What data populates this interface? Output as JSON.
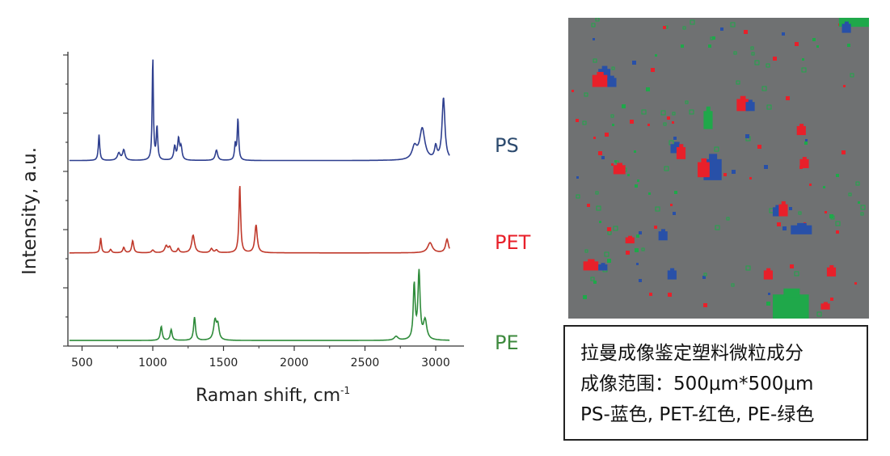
{
  "chart_data": [
    {
      "type": "line",
      "xlabel": "Raman shift, cm",
      "xlabel_superscript": "-1",
      "ylabel": "Intensity,  a.u.",
      "xlim": [
        400,
        3200
      ],
      "xticks": [
        "500",
        "1000",
        "1500",
        "2000",
        "2500",
        "3000"
      ],
      "xtick_values": [
        500,
        1000,
        1500,
        2000,
        2500,
        3000
      ],
      "grid": false,
      "series": [
        {
          "name": "PS",
          "color": "#2e3f8f",
          "label_color": "#2c4a6e",
          "baseline": 0.05,
          "peaks": [
            [
              620,
              0.25,
              6
            ],
            [
              760,
              0.07,
              12
            ],
            [
              795,
              0.1,
              10
            ],
            [
              1000,
              1.0,
              5
            ],
            [
              1030,
              0.32,
              6
            ],
            [
              1155,
              0.13,
              8
            ],
            [
              1182,
              0.2,
              8
            ],
            [
              1200,
              0.12,
              8
            ],
            [
              1450,
              0.1,
              10
            ],
            [
              1583,
              0.15,
              6
            ],
            [
              1602,
              0.4,
              6
            ],
            [
              2850,
              0.12,
              20
            ],
            [
              2905,
              0.3,
              22
            ],
            [
              3000,
              0.12,
              10
            ],
            [
              3055,
              0.6,
              12
            ]
          ]
        },
        {
          "name": "PET",
          "color": "#c0392b",
          "label_color": "#e8202a",
          "baseline": 0.05,
          "peaks": [
            [
              632,
              0.22,
              6
            ],
            [
              702,
              0.05,
              8
            ],
            [
              795,
              0.08,
              8
            ],
            [
              858,
              0.18,
              8
            ],
            [
              1000,
              0.04,
              10
            ],
            [
              1095,
              0.1,
              12
            ],
            [
              1120,
              0.08,
              10
            ],
            [
              1180,
              0.06,
              8
            ],
            [
              1285,
              0.26,
              12
            ],
            [
              1415,
              0.06,
              10
            ],
            [
              1450,
              0.04,
              10
            ],
            [
              1615,
              1.0,
              7
            ],
            [
              1730,
              0.41,
              10
            ],
            [
              2960,
              0.15,
              20
            ],
            [
              3080,
              0.2,
              12
            ]
          ]
        },
        {
          "name": "PE",
          "color": "#2e8b3a",
          "label_color": "#3e8a3e",
          "baseline": 0.04,
          "peaks": [
            [
              1060,
              0.18,
              8
            ],
            [
              1130,
              0.14,
              8
            ],
            [
              1295,
              0.3,
              8
            ],
            [
              1440,
              0.25,
              12
            ],
            [
              1460,
              0.18,
              10
            ],
            [
              2720,
              0.05,
              16
            ],
            [
              2848,
              0.7,
              8
            ],
            [
              2882,
              0.86,
              9
            ],
            [
              2925,
              0.25,
              14
            ]
          ]
        }
      ]
    },
    {
      "type": "heatmap",
      "description_lines": [
        "拉曼成像鉴定塑料微粒成分",
        "成像范围：500μm*500μm",
        "PS-蓝色, PET-红色, PE-绿色"
      ],
      "colors": {
        "background": "#6f7172",
        "PS": "#2850a8",
        "PET": "#e8202a",
        "PE": "#1fa84a"
      },
      "particles": [
        {
          "cls": "PS",
          "x": 0.1,
          "y": 0.17,
          "w": 0.04,
          "h": 0.04
        },
        {
          "cls": "PET",
          "x": 0.08,
          "y": 0.19,
          "w": 0.05,
          "h": 0.04
        },
        {
          "cls": "PS",
          "x": 0.13,
          "y": 0.2,
          "w": 0.03,
          "h": 0.03
        },
        {
          "cls": "PE",
          "x": 0.9,
          "y": 0.0,
          "w": 0.1,
          "h": 0.03
        },
        {
          "cls": "PS",
          "x": 0.91,
          "y": 0.02,
          "w": 0.03,
          "h": 0.03
        },
        {
          "cls": "PET",
          "x": 0.56,
          "y": 0.27,
          "w": 0.04,
          "h": 0.04
        },
        {
          "cls": "PS",
          "x": 0.59,
          "y": 0.28,
          "w": 0.03,
          "h": 0.03
        },
        {
          "cls": "PE",
          "x": 0.45,
          "y": 0.31,
          "w": 0.03,
          "h": 0.06
        },
        {
          "cls": "PS",
          "x": 0.34,
          "y": 0.42,
          "w": 0.04,
          "h": 0.03
        },
        {
          "cls": "PET",
          "x": 0.36,
          "y": 0.43,
          "w": 0.03,
          "h": 0.04
        },
        {
          "cls": "PS",
          "x": 0.45,
          "y": 0.47,
          "w": 0.06,
          "h": 0.07
        },
        {
          "cls": "PET",
          "x": 0.43,
          "y": 0.48,
          "w": 0.04,
          "h": 0.05
        },
        {
          "cls": "PET",
          "x": 0.15,
          "y": 0.49,
          "w": 0.04,
          "h": 0.03
        },
        {
          "cls": "PET",
          "x": 0.76,
          "y": 0.36,
          "w": 0.03,
          "h": 0.03
        },
        {
          "cls": "PET",
          "x": 0.77,
          "y": 0.47,
          "w": 0.03,
          "h": 0.03
        },
        {
          "cls": "PS",
          "x": 0.68,
          "y": 0.63,
          "w": 0.03,
          "h": 0.03
        },
        {
          "cls": "PET",
          "x": 0.7,
          "y": 0.62,
          "w": 0.03,
          "h": 0.04
        },
        {
          "cls": "PS",
          "x": 0.74,
          "y": 0.69,
          "w": 0.07,
          "h": 0.03
        },
        {
          "cls": "PS",
          "x": 0.3,
          "y": 0.71,
          "w": 0.03,
          "h": 0.03
        },
        {
          "cls": "PET",
          "x": 0.05,
          "y": 0.81,
          "w": 0.05,
          "h": 0.03
        },
        {
          "cls": "PS",
          "x": 0.1,
          "y": 0.82,
          "w": 0.03,
          "h": 0.02
        },
        {
          "cls": "PS",
          "x": 0.33,
          "y": 0.84,
          "w": 0.03,
          "h": 0.03
        },
        {
          "cls": "PET",
          "x": 0.65,
          "y": 0.84,
          "w": 0.03,
          "h": 0.03
        },
        {
          "cls": "PET",
          "x": 0.86,
          "y": 0.83,
          "w": 0.03,
          "h": 0.03
        },
        {
          "cls": "PET",
          "x": 0.19,
          "y": 0.73,
          "w": 0.03,
          "h": 0.02
        },
        {
          "cls": "PE",
          "x": 0.68,
          "y": 0.92,
          "w": 0.12,
          "h": 0.08
        },
        {
          "cls": "PET",
          "x": 0.84,
          "y": 0.95,
          "w": 0.03,
          "h": 0.02
        }
      ]
    }
  ]
}
